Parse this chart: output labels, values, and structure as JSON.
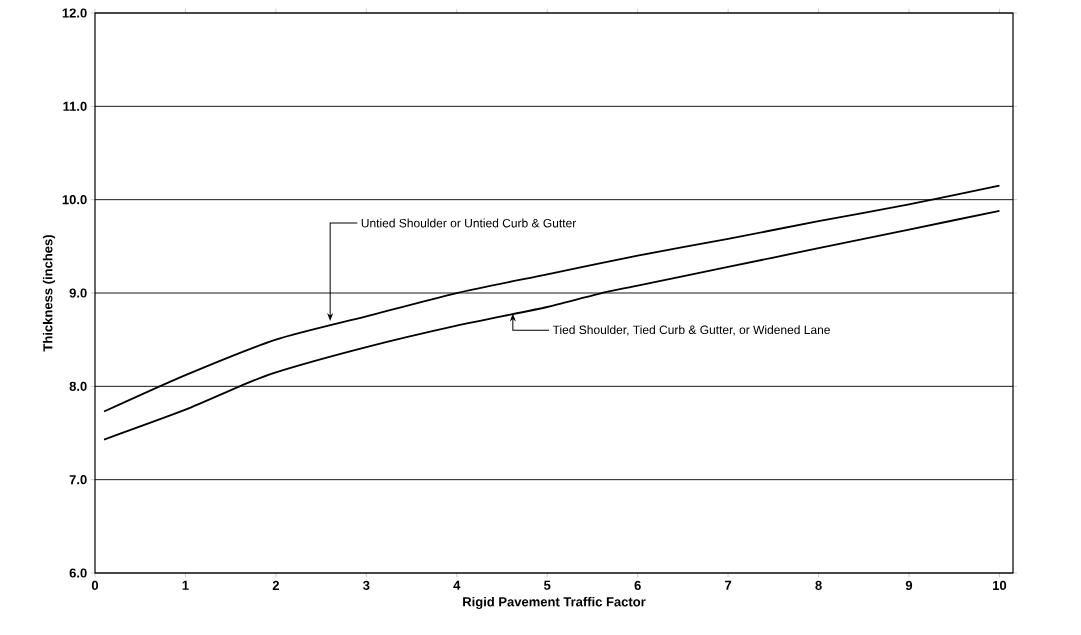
{
  "chart_data": {
    "type": "line",
    "xlabel": "Rigid Pavement Traffic Factor",
    "ylabel": "Thickness (inches)",
    "xlim": [
      0,
      10.15
    ],
    "xticks": [
      0,
      1,
      2,
      3,
      4,
      5,
      6,
      7,
      8,
      9,
      10
    ],
    "ylim": [
      6,
      12
    ],
    "yticks": [
      {
        "value": 6,
        "label": "6.0"
      },
      {
        "value": 7,
        "label": "7.0"
      },
      {
        "value": 8,
        "label": "8.0"
      },
      {
        "value": 9,
        "label": "9.0"
      },
      {
        "value": 10,
        "label": "10.0"
      },
      {
        "value": 11,
        "label": "11.0"
      },
      {
        "value": 12,
        "label": "12.0"
      }
    ],
    "grid": "y",
    "line_style": "solid",
    "marker": "none",
    "series": [
      {
        "color": "#000000",
        "x": [
          0.1,
          1,
          2,
          3,
          4,
          5,
          6,
          7,
          8,
          9,
          10
        ],
        "values": [
          7.73,
          8.12,
          8.5,
          8.75,
          9.0,
          9.2,
          9.4,
          9.58,
          9.77,
          9.95,
          10.15
        ]
      },
      {
        "color": "#000000",
        "x": [
          0.1,
          1,
          1.6,
          2,
          3,
          4,
          5,
          5.6,
          6,
          7,
          8,
          9,
          10
        ],
        "values": [
          7.43,
          7.75,
          8.0,
          8.15,
          8.42,
          8.65,
          8.85,
          9.0,
          9.08,
          9.28,
          9.48,
          9.68,
          9.88
        ]
      }
    ],
    "annotations": [
      "Untied Shoulder or Untied Curb & Gutter",
      "Tied Shoulder, Tied Curb & Gutter, or Widened Lane"
    ]
  }
}
